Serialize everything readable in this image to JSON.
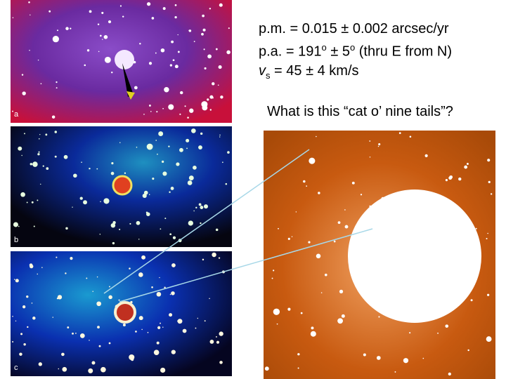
{
  "text_lines": [
    {
      "parts": [
        "p.m. = 0.015 ± 0.002 arcsec/yr"
      ]
    },
    {
      "parts": [
        "p.a. = 191",
        "o",
        " ± 5",
        "o",
        " (thru E from N)"
      ]
    },
    {
      "parts": [
        "v",
        "s",
        " = 45 ± 4 km/s"
      ]
    }
  ],
  "question": "What is this “cat o’ nine tails”?",
  "panels": [
    {
      "label": "a"
    },
    {
      "label": "b"
    },
    {
      "label": "c"
    }
  ]
}
